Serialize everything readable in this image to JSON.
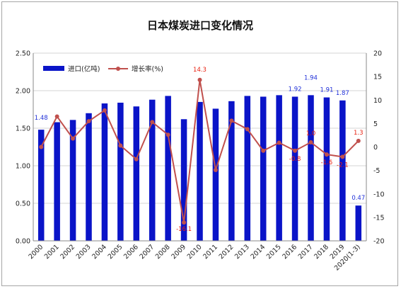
{
  "chart_data": {
    "type": "bar",
    "title": "日本煤炭进口变化情况",
    "categories": [
      "2000",
      "2001",
      "2002",
      "2003",
      "2004",
      "2005",
      "2006",
      "2007",
      "2008",
      "2009",
      "2010",
      "2011",
      "2012",
      "2013",
      "2014",
      "2015",
      "2016",
      "2017",
      "2018",
      "2019",
      "2020(1-3)"
    ],
    "series": [
      {
        "name": "进口(亿吨)",
        "kind": "bar",
        "axis": "left",
        "color": "#0a14c8",
        "values": [
          1.48,
          1.58,
          1.61,
          1.7,
          1.83,
          1.84,
          1.79,
          1.88,
          1.93,
          1.62,
          1.85,
          1.76,
          1.86,
          1.93,
          1.92,
          1.94,
          1.92,
          1.94,
          1.91,
          1.87,
          0.47
        ]
      },
      {
        "name": "增长率(%)",
        "kind": "line",
        "axis": "right",
        "color": "#c0504d",
        "values": [
          0,
          6.5,
          1.8,
          5.5,
          7.8,
          0.3,
          -2.6,
          5.3,
          2.6,
          -16.1,
          14.3,
          -4.9,
          5.6,
          3.8,
          -0.8,
          0.9,
          -0.8,
          1.0,
          -1.6,
          -2.1,
          1.3
        ]
      }
    ],
    "bar_labels": [
      {
        "index": 0,
        "text": "1.48"
      },
      {
        "index": 17,
        "text": "1.94"
      },
      {
        "index": 16,
        "text": "1.92"
      },
      {
        "index": 18,
        "text": "1.91"
      },
      {
        "index": 19,
        "text": "1.87"
      },
      {
        "index": 20,
        "text": "0.47"
      }
    ],
    "line_labels": [
      {
        "index": 10,
        "text": "14.3"
      },
      {
        "index": 9,
        "text": "-16.1"
      },
      {
        "index": 16,
        "text": "-0.8"
      },
      {
        "index": 17,
        "text": "1.0"
      },
      {
        "index": 18,
        "text": "-1.6"
      },
      {
        "index": 19,
        "text": "-2.1"
      },
      {
        "index": 20,
        "text": "1.3"
      }
    ],
    "y_left": {
      "min": 0,
      "max": 2.5,
      "step": 0.5,
      "ticks": [
        "0.00",
        "0.50",
        "1.00",
        "1.50",
        "2.00",
        "2.50"
      ]
    },
    "y_right": {
      "min": -20,
      "max": 20,
      "step": 5,
      "ticks": [
        "-20",
        "-15",
        "-10",
        "-5",
        "0",
        "5",
        "10",
        "15",
        "20"
      ]
    },
    "grid": true,
    "legend_position": "top-left"
  }
}
